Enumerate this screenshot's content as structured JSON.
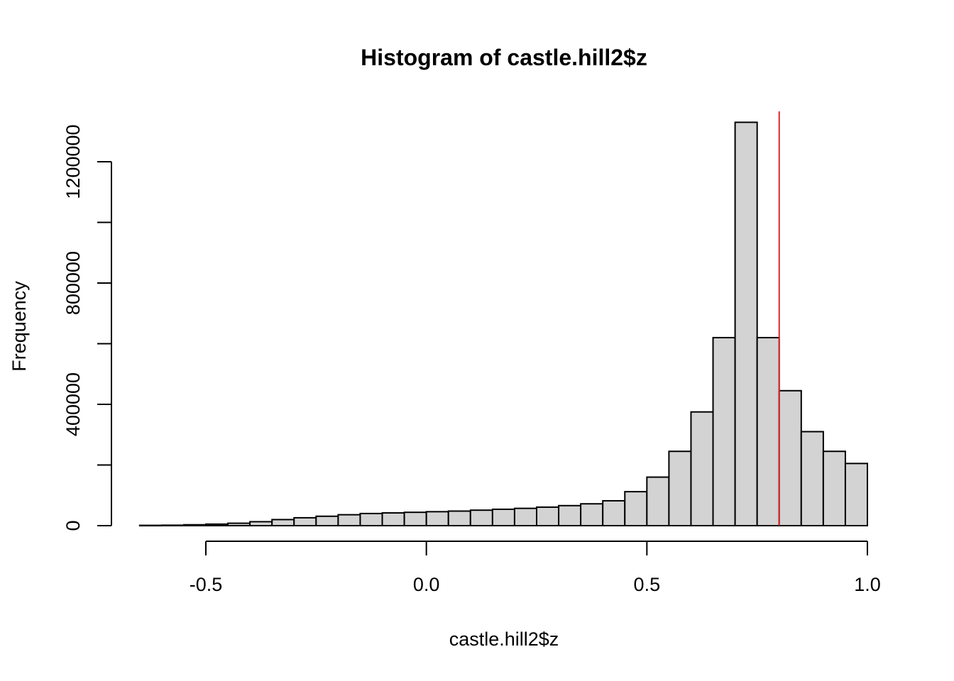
{
  "chart_data": {
    "type": "bar",
    "title": "Histogram of castle.hill2$z",
    "xlabel": "castle.hill2$z",
    "ylabel": "Frequency",
    "bin_width": 0.05,
    "bin_start": -0.65,
    "values": [
      1000,
      1500,
      3000,
      5000,
      8000,
      13000,
      20000,
      26000,
      31000,
      36000,
      40000,
      42000,
      44000,
      46000,
      48000,
      51000,
      54000,
      57000,
      61000,
      66000,
      72000,
      82000,
      112000,
      160000,
      245000,
      375000,
      620000,
      1330000,
      620000,
      445000,
      310000,
      245000,
      205000
    ],
    "xlim": [
      -0.65,
      1.0
    ],
    "ylim": [
      0,
      1340000
    ],
    "x_ticks": [
      {
        "value": -0.5,
        "label": "-0.5"
      },
      {
        "value": 0.0,
        "label": "0.0"
      },
      {
        "value": 0.5,
        "label": "0.5"
      },
      {
        "value": 1.0,
        "label": "1.0"
      }
    ],
    "y_ticks": [
      {
        "value": 0,
        "label": "0"
      },
      {
        "value": 200000,
        "label": ""
      },
      {
        "value": 400000,
        "label": "400000"
      },
      {
        "value": 600000,
        "label": ""
      },
      {
        "value": 800000,
        "label": "800000"
      },
      {
        "value": 1000000,
        "label": ""
      },
      {
        "value": 1200000,
        "label": "1200000"
      }
    ],
    "vline": {
      "x": 0.8,
      "color": "#e0262a"
    },
    "bar_fill": "#d3d3d3",
    "grid": false
  }
}
